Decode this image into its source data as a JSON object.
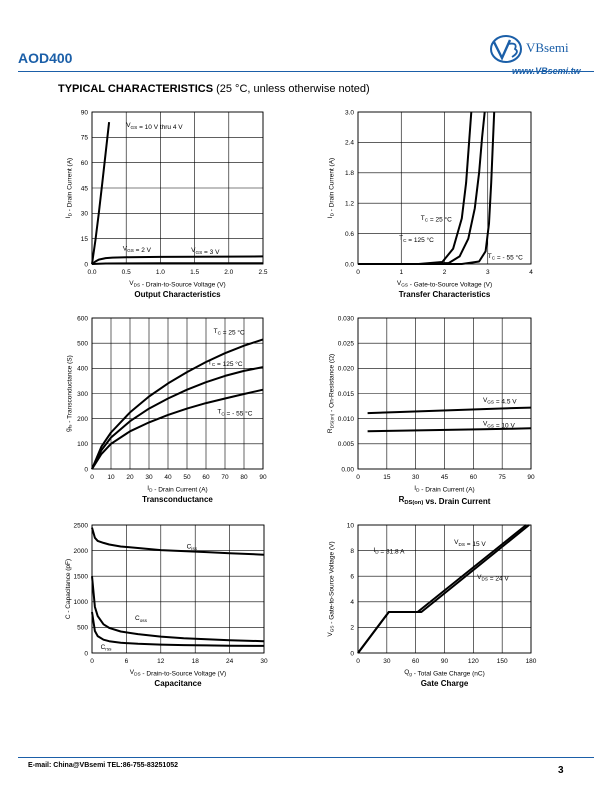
{
  "header": {
    "part_number": "AOD400",
    "brand": "VBsemi",
    "website": "www.VBsemi.tw",
    "logo_icon": "vbsemi-logo-icon",
    "accent_color": "#1b5fa8"
  },
  "section": {
    "title": "TYPICAL CHARACTERISTICS",
    "subtitle": "(25 °C, unless otherwise noted)"
  },
  "footer": {
    "contact": "E-mail:  China@VBsemi   TEL:86-755-83251052",
    "page_number": "3"
  },
  "chart_data": [
    {
      "type": "line",
      "title": "Output Characteristics",
      "xlabel": "V_DS - Drain-to-Source Voltage (V)",
      "ylabel": "I_D - Drain Current (A)",
      "xlim": [
        0,
        2.5
      ],
      "ylim": [
        0,
        90
      ],
      "xticks": [
        0,
        0.5,
        1,
        1.5,
        2,
        2.5
      ],
      "xtick_labels": [
        "0.0",
        "0.5",
        "1.0",
        "1.5",
        "2.0",
        "2.5"
      ],
      "yticks": [
        0,
        15,
        30,
        45,
        60,
        75,
        90
      ],
      "ytick_labels": [
        "0",
        "15",
        "30",
        "45",
        "60",
        "75",
        "90"
      ],
      "grid": true,
      "series": [
        {
          "name": "V_GS = 10 V thru 4 V",
          "x": [
            0,
            0.05,
            0.1,
            0.15,
            0.2,
            0.25
          ],
          "y": [
            0,
            14,
            30,
            48,
            66,
            84
          ]
        },
        {
          "name": "V_GS = 3 V",
          "x": [
            0,
            0.05,
            0.1,
            0.2,
            0.3,
            0.5,
            1,
            1.5,
            2,
            2.5
          ],
          "y": [
            0,
            1.5,
            2.6,
            3.5,
            3.8,
            4,
            4.2,
            4.3,
            4.4,
            4.5
          ]
        },
        {
          "name": "V_GS = 2 V",
          "x": [
            0,
            0.1,
            0.2,
            0.5,
            1,
            1.5,
            2,
            2.5
          ],
          "y": [
            0,
            0.2,
            0.3,
            0.35,
            0.4,
            0.42,
            0.44,
            0.45
          ]
        }
      ],
      "annotations": [
        {
          "text": "V_GS = 10 V thru 4 V",
          "x": 0.5,
          "y": 81
        },
        {
          "text": "V_GS = 2 V",
          "x": 0.45,
          "y": 8
        },
        {
          "text": "V_GS = 3 V",
          "x": 1.45,
          "y": 7
        }
      ]
    },
    {
      "type": "line",
      "title": "Transfer Characteristics",
      "xlabel": "V_GS - Gate-to-Source Voltage (V)",
      "ylabel": "I_D - Drain Current (A)",
      "xlim": [
        0,
        4
      ],
      "ylim": [
        0,
        3
      ],
      "xticks": [
        0,
        1,
        2,
        3,
        4
      ],
      "xtick_labels": [
        "0",
        "1",
        "2",
        "3",
        "4"
      ],
      "yticks": [
        0,
        0.6,
        1.2,
        1.8,
        2.4,
        3
      ],
      "ytick_labels": [
        "0.0",
        "0.6",
        "1.2",
        "1.8",
        "2.4",
        "3.0"
      ],
      "grid": true,
      "series": [
        {
          "name": "T_C = 25 °C",
          "x": [
            0,
            1.5,
            2.1,
            2.35,
            2.55,
            2.7,
            2.8,
            2.87,
            2.93
          ],
          "y": [
            0,
            0,
            0.02,
            0.15,
            0.5,
            1.1,
            1.8,
            2.5,
            3.0
          ]
        },
        {
          "name": "T_C = 125 °C",
          "x": [
            0,
            1.4,
            1.95,
            2.2,
            2.4,
            2.5,
            2.56,
            2.62
          ],
          "y": [
            0,
            0,
            0.04,
            0.3,
            0.9,
            1.6,
            2.3,
            3.0
          ]
        },
        {
          "name": "T_C = - 55 °C",
          "x": [
            0,
            2.4,
            2.8,
            2.95,
            3.03,
            3.08,
            3.12,
            3.15
          ],
          "y": [
            0,
            0,
            0.05,
            0.25,
            0.8,
            1.6,
            2.4,
            3.0
          ]
        }
      ],
      "annotations": [
        {
          "text": "T_C = 25 °C",
          "x": 1.45,
          "y": 0.87
        },
        {
          "text": "T_C = 125 °C",
          "x": 0.95,
          "y": 0.47
        },
        {
          "text": "T_C = - 55 °C",
          "x": 3.0,
          "y": 0.12
        }
      ]
    },
    {
      "type": "line",
      "title": "Transconductance",
      "xlabel": "I_D - Drain Current (A)",
      "ylabel": "g_fs - Transconductance (S)",
      "xlim": [
        0,
        90
      ],
      "ylim": [
        0,
        600
      ],
      "xticks": [
        0,
        10,
        20,
        30,
        40,
        50,
        60,
        70,
        80,
        90
      ],
      "xtick_labels": [
        "0",
        "10",
        "20",
        "30",
        "40",
        "50",
        "60",
        "70",
        "80",
        "90"
      ],
      "yticks": [
        0,
        100,
        200,
        300,
        400,
        500,
        600
      ],
      "ytick_labels": [
        "0",
        "100",
        "200",
        "300",
        "400",
        "500",
        "600"
      ],
      "grid": true,
      "series": [
        {
          "name": "T_C = 25 °C",
          "x": [
            0,
            5,
            10,
            20,
            30,
            40,
            50,
            60,
            70,
            80,
            90
          ],
          "y": [
            0,
            90,
            145,
            225,
            288,
            340,
            385,
            425,
            460,
            490,
            515
          ]
        },
        {
          "name": "T_C = 125 °C",
          "x": [
            0,
            5,
            10,
            20,
            30,
            40,
            50,
            60,
            70,
            80,
            90
          ],
          "y": [
            0,
            75,
            125,
            190,
            240,
            280,
            315,
            345,
            370,
            390,
            405
          ]
        },
        {
          "name": "T_C = - 55 °C",
          "x": [
            0,
            5,
            10,
            20,
            30,
            40,
            50,
            60,
            70,
            80,
            90
          ],
          "y": [
            0,
            60,
            100,
            150,
            185,
            215,
            240,
            262,
            280,
            298,
            315
          ]
        }
      ],
      "annotations": [
        {
          "text": "T_C = 25 °C",
          "x": 64,
          "y": 540
        },
        {
          "text": "T_C = 125 °C",
          "x": 61,
          "y": 415
        },
        {
          "text": "T_C = - 55 °C",
          "x": 66,
          "y": 220
        }
      ]
    },
    {
      "type": "line",
      "title": "R_DS(on) vs. Drain Current",
      "xlabel": "I_D - Drain Current (A)",
      "ylabel": "R_DS(on) - On-Resistance (Ω)",
      "xlim": [
        0,
        90
      ],
      "ylim": [
        0,
        0.03
      ],
      "xticks": [
        0,
        15,
        30,
        45,
        60,
        75,
        90
      ],
      "xtick_labels": [
        "0",
        "15",
        "30",
        "45",
        "60",
        "75",
        "90"
      ],
      "yticks": [
        0,
        0.005,
        0.01,
        0.015,
        0.02,
        0.025,
        0.03
      ],
      "ytick_labels": [
        "0.00",
        "0.005",
        "0.010",
        "0.015",
        "0.020",
        "0.025",
        "0.030"
      ],
      "grid": true,
      "series": [
        {
          "name": "V_GS = 4.5 V",
          "x": [
            5,
            20,
            35,
            50,
            65,
            80,
            90
          ],
          "y": [
            0.0111,
            0.0113,
            0.0115,
            0.0117,
            0.0119,
            0.0121,
            0.0122
          ]
        },
        {
          "name": "V_GS = 10 V",
          "x": [
            5,
            20,
            35,
            50,
            65,
            80,
            90
          ],
          "y": [
            0.0075,
            0.0076,
            0.0077,
            0.0078,
            0.0079,
            0.008,
            0.0081
          ]
        }
      ],
      "annotations": [
        {
          "text": "V_GS = 4.5 V",
          "x": 65,
          "y": 0.0133
        },
        {
          "text": "V_GS = 10 V",
          "x": 65,
          "y": 0.0086
        }
      ]
    },
    {
      "type": "line",
      "title": "Capacitance",
      "xlabel": "V_DS - Drain-to-Source Voltage (V)",
      "ylabel": "C - Capacitance (pF)",
      "xlim": [
        0,
        30
      ],
      "ylim": [
        0,
        2500
      ],
      "xticks": [
        0,
        6,
        12,
        18,
        24,
        30
      ],
      "xtick_labels": [
        "0",
        "6",
        "12",
        "18",
        "24",
        "30"
      ],
      "yticks": [
        0,
        500,
        1000,
        1500,
        2000,
        2500
      ],
      "ytick_labels": [
        "0",
        "500",
        "1000",
        "1500",
        "2000",
        "2500"
      ],
      "grid": true,
      "series": [
        {
          "name": "C_iss",
          "x": [
            0,
            0.5,
            1,
            2,
            3,
            5,
            8,
            12,
            16,
            20,
            24,
            30
          ],
          "y": [
            2450,
            2250,
            2190,
            2150,
            2120,
            2080,
            2050,
            2010,
            1990,
            1970,
            1950,
            1920
          ]
        },
        {
          "name": "C_oss",
          "x": [
            0,
            0.5,
            1,
            2,
            3,
            5,
            8,
            12,
            16,
            20,
            24,
            30
          ],
          "y": [
            1500,
            900,
            720,
            560,
            490,
            420,
            370,
            320,
            290,
            270,
            250,
            230
          ]
        },
        {
          "name": "C_rss",
          "x": [
            0,
            0.5,
            1,
            2,
            3,
            5,
            8,
            12,
            16,
            20,
            24,
            30
          ],
          "y": [
            800,
            430,
            330,
            260,
            230,
            200,
            180,
            165,
            155,
            148,
            142,
            138
          ]
        }
      ],
      "annotations": [
        {
          "text": "C_iss",
          "x": 16.5,
          "y": 2040
        },
        {
          "text": "C_oss",
          "x": 7.5,
          "y": 640
        },
        {
          "text": "C_rss",
          "x": 1.5,
          "y": 80
        }
      ]
    },
    {
      "type": "line",
      "title": "Gate Charge",
      "xlabel": "Q_g - Total Gate Charge (nC)",
      "ylabel": "V_GS - Gate-to-Source Voltage (V)",
      "xlim": [
        0,
        180
      ],
      "ylim": [
        0,
        10
      ],
      "xticks": [
        0,
        30,
        60,
        90,
        120,
        150,
        180
      ],
      "xtick_labels": [
        "0",
        "30",
        "60",
        "90",
        "120",
        "150",
        "180"
      ],
      "yticks": [
        0,
        2,
        4,
        6,
        8,
        10
      ],
      "ytick_labels": [
        "0",
        "2",
        "4",
        "6",
        "8",
        "10"
      ],
      "grid": true,
      "series": [
        {
          "name": "V_DS = 15 V",
          "x": [
            0,
            32,
            62,
            175
          ],
          "y": [
            0,
            3.2,
            3.2,
            10
          ]
        },
        {
          "name": "V_DS = 24 V",
          "x": [
            0,
            32,
            66,
            178
          ],
          "y": [
            0,
            3.2,
            3.2,
            10
          ]
        }
      ],
      "annotations": [
        {
          "text": "I_D = 31.8 A",
          "x": 16,
          "y": 7.9
        },
        {
          "text": "V_DS = 15 V",
          "x": 100,
          "y": 8.5
        },
        {
          "text": "V_DS = 24 V",
          "x": 124,
          "y": 5.8
        }
      ]
    }
  ]
}
